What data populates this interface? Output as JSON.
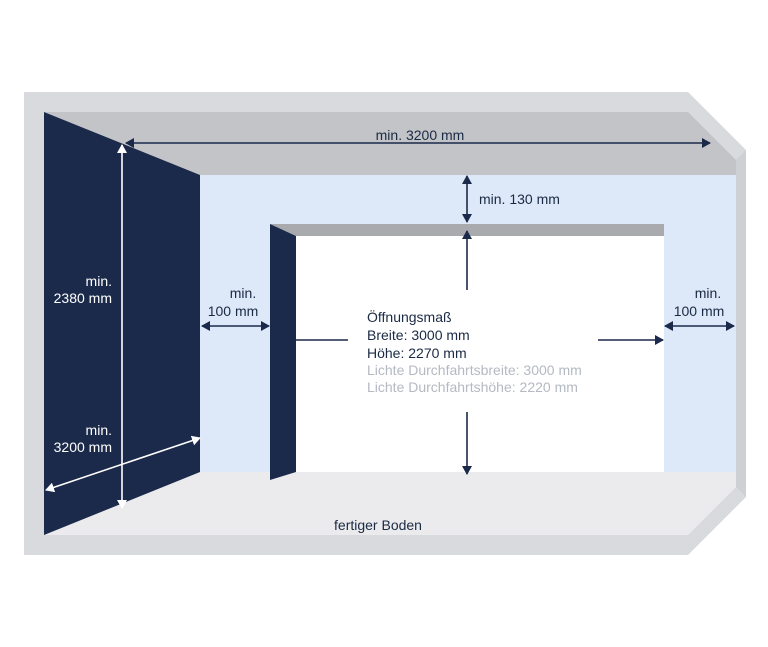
{
  "labels": {
    "ceiling_width": "min. 3200 mm",
    "lintel_height": "min. 130 mm",
    "left_side_1": "min.",
    "left_side_2": "100 mm",
    "right_side_1": "min.",
    "right_side_2": "100 mm",
    "wall_height_1": "min.",
    "wall_height_2": "2380 mm",
    "depth_1": "min.",
    "depth_2": "3200 mm",
    "opening_title": "Öffnungsmaß",
    "opening_width": "Breite: 3000 mm",
    "opening_height": "Höhe: 2270 mm",
    "clear_width": "Lichte Durchfahrtsbreite: 3000 mm",
    "clear_height": "Lichte Durchfahrtshöhe: 2220 mm",
    "floor": "fertiger Boden"
  },
  "colors": {
    "frame": "#d9dadd",
    "ceiling": "#c3c4c8",
    "back_wall": "#dde8f8",
    "side_wall": "#1b2a4a",
    "floor": "#ebebed",
    "lintel": "#a9aaae",
    "opening": "#ffffff"
  }
}
